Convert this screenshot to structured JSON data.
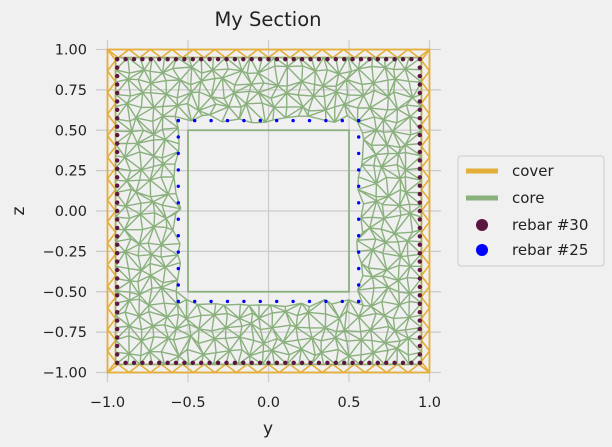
{
  "chart_data": {
    "type": "scatter",
    "title": "My Section",
    "xlabel": "y",
    "ylabel": "z",
    "xlim": [
      -1.05,
      1.05
    ],
    "ylim": [
      -1.05,
      1.05
    ],
    "xticks": [
      "−1.0",
      "−0.5",
      "0.0",
      "0.5",
      "1.0"
    ],
    "xtick_values": [
      -1.0,
      -0.5,
      0.0,
      0.5,
      1.0
    ],
    "yticks": [
      "1.00",
      "0.75",
      "0.50",
      "0.25",
      "0.00",
      "−0.25",
      "−0.50",
      "−0.75",
      "−1.00"
    ],
    "ytick_values": [
      1.0,
      0.75,
      0.5,
      0.25,
      0.0,
      -0.25,
      -0.5,
      -0.75,
      -1.0
    ],
    "grid": true,
    "legend_position": "right",
    "section": {
      "outer_half_width": 1.0,
      "core_half_width": 0.95,
      "hole_y": [
        -0.5,
        0.5
      ],
      "hole_z": [
        -0.5,
        0.5
      ]
    },
    "series": [
      {
        "name": "cover",
        "kind": "mesh",
        "color": "#e5ae38",
        "region": "outer band between |y|,|z| = 1.0 and 0.95"
      },
      {
        "name": "core",
        "kind": "mesh",
        "color": "#8ab17d",
        "region": "square ring between |y|,|z| = 0.95 and 0.5"
      },
      {
        "name": "rebar #30",
        "kind": "points",
        "color": "#5a1540",
        "perimeter_half_width": 0.94,
        "spacing": 0.0526,
        "points_per_side": 36
      },
      {
        "name": "rebar #25",
        "kind": "points",
        "color": "#0000ff",
        "inner_half_width": 0.56,
        "spacing": 0.1,
        "points_per_side": 12
      }
    ]
  }
}
